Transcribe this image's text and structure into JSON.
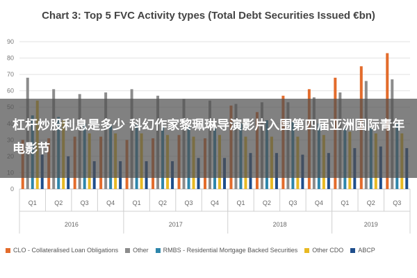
{
  "chart_data": {
    "type": "bar",
    "title": "Chart 3: Top 5 FVC Activity types (Total Debt Securities Issued €bn)",
    "xlabel": "",
    "ylabel": "",
    "ylim": [
      0,
      90
    ],
    "yticks": [
      "0",
      "10",
      "20",
      "30",
      "40",
      "50",
      "60",
      "70",
      "80",
      "90"
    ],
    "grid": true,
    "legend_position": "bottom",
    "categories": [
      "Q1",
      "Q2",
      "Q3",
      "Q4",
      "Q1",
      "Q2",
      "Q3",
      "Q4",
      "Q1",
      "Q2",
      "Q3",
      "Q4",
      "Q1",
      "Q2",
      "Q3"
    ],
    "year_groups": [
      {
        "label": "2016",
        "count": 4
      },
      {
        "label": "2017",
        "count": 4
      },
      {
        "label": "2018",
        "count": 4
      },
      {
        "label": "2019",
        "count": 3
      }
    ],
    "series": [
      {
        "name": "CLO - Collateralised Loan Obligations",
        "color": "#E36C2C",
        "values": [
          30,
          31,
          32,
          32,
          30,
          31,
          33,
          31,
          51,
          47,
          57,
          61,
          68,
          75,
          83
        ]
      },
      {
        "name": "Other",
        "color": "#8C8C8C",
        "values": [
          68,
          61,
          58,
          59,
          61,
          57,
          55,
          54,
          52,
          53,
          53,
          56,
          59,
          66,
          67
        ]
      },
      {
        "name": "RMBS - Residential Mortgage Backed Securities",
        "color": "#2E86AB",
        "values": [
          45,
          44,
          40,
          39,
          39,
          38,
          38,
          37,
          40,
          42,
          41,
          40,
          37,
          37,
          40
        ]
      },
      {
        "name": "Other CDO",
        "color": "#E8B923",
        "values": [
          54,
          42,
          34,
          34,
          34,
          33,
          32,
          33,
          32,
          32,
          32,
          33,
          35,
          34,
          34
        ]
      },
      {
        "name": "ABCP",
        "color": "#1F4E8C",
        "values": [
          21,
          20,
          17,
          17,
          17,
          17,
          19,
          19,
          22,
          22,
          21,
          22,
          25,
          26,
          25
        ]
      }
    ]
  },
  "overlay": {
    "text": "杠杆炒股利息是多少 科幻作家黎珮琳导演影片入围第四届亚洲国际青年电影节"
  }
}
